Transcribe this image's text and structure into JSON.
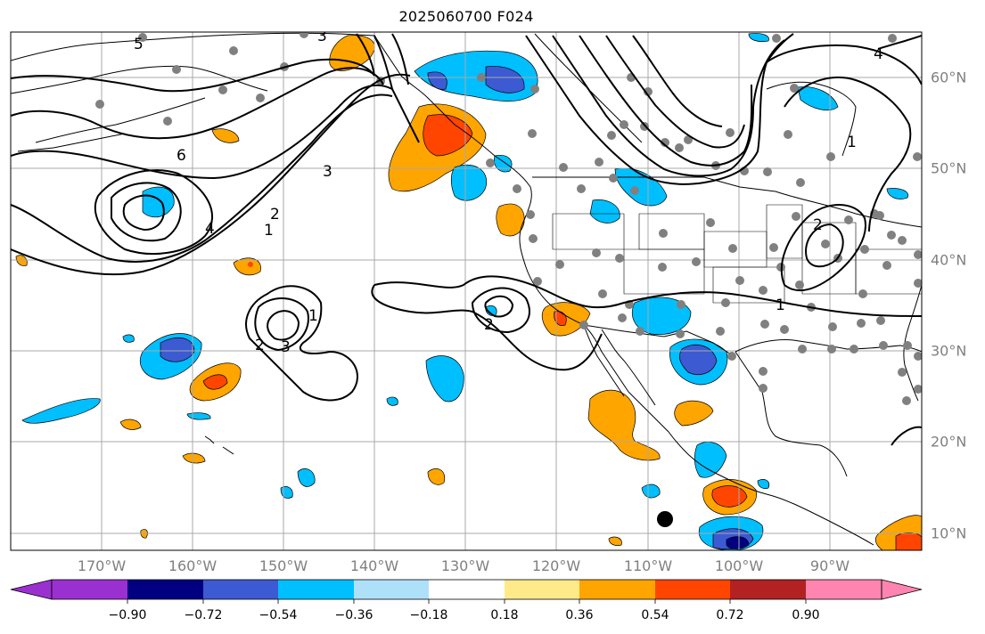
{
  "title": "2025060700 F024",
  "lon_labels": [
    "170°W",
    "160°W",
    "150°W",
    "140°W",
    "130°W",
    "120°W",
    "110°W",
    "100°W",
    "90°W"
  ],
  "lat_labels": [
    "60°N",
    "50°N",
    "40°N",
    "30°N",
    "20°N",
    "10°N"
  ],
  "colorbar": {
    "ticks": [
      "−0.90",
      "−0.72",
      "−0.54",
      "−0.36",
      "−0.18",
      "0.18",
      "0.36",
      "0.54",
      "0.72",
      "0.90"
    ],
    "colors": [
      "#9b30d0",
      "#000080",
      "#3c5ad2",
      "#00bfff",
      "#afe0fa",
      "#ffffff",
      "#ffea8a",
      "#ffa500",
      "#ff4500",
      "#b22222",
      "#ff85b0"
    ]
  },
  "contour_labels": [
    "6",
    "4",
    "3",
    "2",
    "1",
    "5",
    "3",
    "2",
    "1",
    "3",
    "2",
    "1",
    "4",
    "2",
    "1"
  ],
  "marker": "black dot"
}
